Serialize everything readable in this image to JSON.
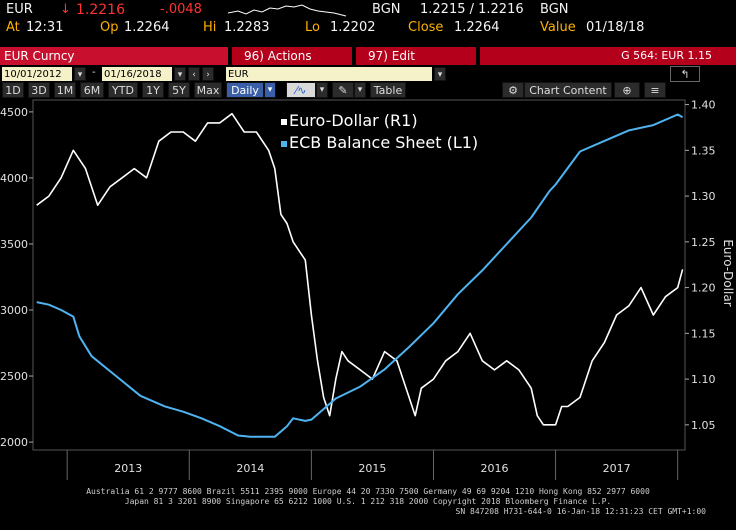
{
  "header": {
    "ticker": "EUR",
    "arrow": "↓",
    "last": "1.2216",
    "change": "-.0048",
    "src": "BGN",
    "bidask": "1.2215 / 1.2216",
    "src2": "BGN",
    "at_label": "At",
    "at_value": "12:31",
    "op_label": "Op",
    "op_value": "1.2264",
    "hi_label": "Hi",
    "hi_value": "1.2283",
    "lo_label": "Lo",
    "lo_value": "1.2202",
    "close_label": "Close",
    "close_value": "1.2264",
    "value_label": "Value",
    "value_date": "01/18/18"
  },
  "menu": {
    "security": "EUR Curncy",
    "actions": "96) Actions",
    "edit": "97) Edit",
    "right": "G 564: EUR 1.15"
  },
  "controls": {
    "start_date": "10/01/2012",
    "end_date": "01/16/2018",
    "dash": "-",
    "series": "EUR"
  },
  "toolbar": {
    "ranges": [
      "1D",
      "3D",
      "1M",
      "6M",
      "YTD",
      "1Y",
      "5Y",
      "Max"
    ],
    "period": "Daily",
    "table": "Table",
    "chart_content": "Chart Content"
  },
  "chart_data": {
    "type": "line",
    "legend": [
      "Euro-Dollar (R1)",
      "ECB Balance Sheet (L1)"
    ],
    "right_axis_title": "Euro-Dollar",
    "x_ticks": [
      "2013",
      "2014",
      "2015",
      "2016",
      "2017"
    ],
    "left_ticks": [
      2000,
      2500,
      3000,
      3500,
      4000,
      4500
    ],
    "right_ticks": [
      "1.05",
      "1.10",
      "1.15",
      "1.20",
      "1.25",
      "1.30",
      "1.35",
      "1.40"
    ],
    "left_ylim": [
      1940,
      4590
    ],
    "right_ylim": [
      1.0225,
      1.405
    ],
    "series": [
      {
        "name": "Euro-Dollar (R1)",
        "axis": "right",
        "color": "#ffffff",
        "x": [
          2012.75,
          2012.85,
          2012.95,
          2013.05,
          2013.15,
          2013.25,
          2013.35,
          2013.45,
          2013.55,
          2013.65,
          2013.75,
          2013.85,
          2013.95,
          2014.05,
          2014.15,
          2014.25,
          2014.35,
          2014.45,
          2014.55,
          2014.65,
          2014.7,
          2014.75,
          2014.8,
          2014.85,
          2014.95,
          2015.0,
          2015.05,
          2015.1,
          2015.15,
          2015.2,
          2015.25,
          2015.3,
          2015.4,
          2015.5,
          2015.6,
          2015.7,
          2015.8,
          2015.85,
          2015.9,
          2016.0,
          2016.1,
          2016.2,
          2016.3,
          2016.4,
          2016.5,
          2016.6,
          2016.7,
          2016.8,
          2016.85,
          2016.9,
          2017.0,
          2017.05,
          2017.1,
          2017.2,
          2017.3,
          2017.4,
          2017.5,
          2017.6,
          2017.7,
          2017.8,
          2017.9,
          2018.0,
          2018.04
        ],
        "y": [
          1.29,
          1.3,
          1.32,
          1.35,
          1.33,
          1.29,
          1.31,
          1.32,
          1.33,
          1.32,
          1.36,
          1.37,
          1.37,
          1.36,
          1.38,
          1.38,
          1.39,
          1.37,
          1.37,
          1.35,
          1.33,
          1.28,
          1.27,
          1.25,
          1.23,
          1.17,
          1.12,
          1.08,
          1.06,
          1.1,
          1.13,
          1.12,
          1.11,
          1.1,
          1.13,
          1.12,
          1.08,
          1.06,
          1.09,
          1.1,
          1.12,
          1.13,
          1.15,
          1.12,
          1.11,
          1.12,
          1.11,
          1.09,
          1.06,
          1.05,
          1.05,
          1.07,
          1.07,
          1.08,
          1.12,
          1.14,
          1.17,
          1.18,
          1.2,
          1.17,
          1.19,
          1.2,
          1.22
        ]
      },
      {
        "name": "ECB Balance Sheet (L1)",
        "axis": "left",
        "color": "#4fb3f0",
        "x": [
          2012.75,
          2012.85,
          2012.95,
          2013.05,
          2013.1,
          2013.2,
          2013.4,
          2013.6,
          2013.8,
          2013.95,
          2014.1,
          2014.25,
          2014.4,
          2014.5,
          2014.7,
          2014.8,
          2014.85,
          2014.95,
          2015.0,
          2015.2,
          2015.4,
          2015.6,
          2015.8,
          2016.0,
          2016.2,
          2016.4,
          2016.6,
          2016.8,
          2016.95,
          2017.0,
          2017.2,
          2017.4,
          2017.6,
          2017.8,
          2018.0,
          2018.04
        ],
        "y": [
          3060,
          3040,
          3000,
          2950,
          2800,
          2650,
          2500,
          2350,
          2270,
          2230,
          2180,
          2120,
          2050,
          2040,
          2040,
          2120,
          2180,
          2160,
          2170,
          2330,
          2420,
          2550,
          2720,
          2900,
          3120,
          3300,
          3500,
          3700,
          3900,
          3950,
          4200,
          4280,
          4360,
          4400,
          4480,
          4460
        ]
      }
    ]
  },
  "footer": {
    "line1": "Australia 61 2 9777 8600 Brazil 5511 2395 9000 Europe 44 20 7330 7500 Germany 49 69 9204 1210 Hong Kong 852 2977 6000",
    "line2": "Japan 81 3 3201 8900        Singapore 65 6212 1000        U.S. 1 212 318 2000        Copyright 2018 Bloomberg Finance L.P.",
    "line3": "SN 847208 H731-644-0 16-Jan-18 12:31:23 CET  GMT+1:00"
  }
}
